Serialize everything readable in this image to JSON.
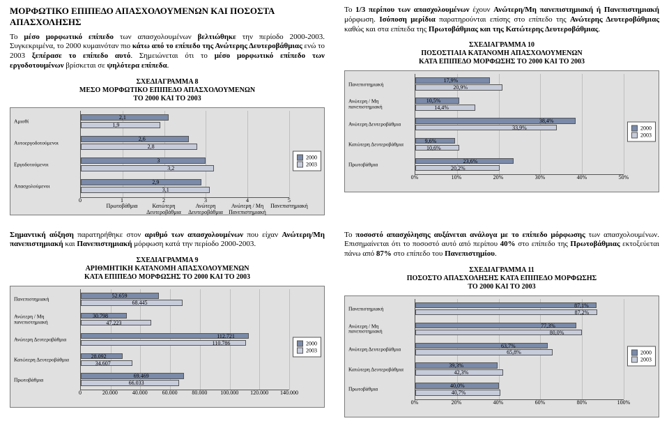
{
  "colors": {
    "series2000": "#7a8aa8",
    "series2003": "#c7ccdb",
    "plot_bg": "#e0e0e0",
    "grid": "#bfbfbf",
    "border": "#7a7a7a",
    "text": "#000000"
  },
  "legend": {
    "y2000": "2000",
    "y2003": "2003"
  },
  "left": {
    "heading": "ΜΟΡΦΩΤΙΚΟ ΕΠΙΠΕΔΟ ΑΠΑΣΧΟΛΟΥΜΕΝΩΝ ΚΑΙ ΠΟΣΟΣΤΑ ΑΠΑΣΧΟΛΗΣΗΣ",
    "p1": "Το μέσο μορφωτικό επίπεδο των απασχολουμένων βελτιώθηκε την περίοδο 2000-2003. Συγκεκριμένα, το 2000 κυμαινόταν πιο κάτω από το επίπεδο της Ανώτερης Δευτεροβάθμιας ενώ το 2003 ξεπέρασε το επίπεδο αυτό. Σημειώνεται ότι το μέσο μορφωτικό επίπεδο των εργοδοτουμένων βρίσκεται σε ψηλότερα επίπεδα.",
    "p2": "Σημαντική αύξηση παρατηρήθηκε στον αριθμό των απασχολουμένων που είχαν Ανώτερη/Μη πανεπιστημιακή και Πανεπιστημιακή μόρφωση κατά την περίοδο 2000-2003."
  },
  "right": {
    "p1": "Το 1/3 περίπου των απασχολουμένων έχουν Ανώτερη/Μη πανεπιστημιακή ή Πανεπιστημιακή μόρφωση. Ισόποση μερίδια παρατηρούνται επίσης στο επίπεδο της Ανώτερης Δευτεροβάθμιας καθώς και στα επίπεδα της Πρωτοβάθμιας και της Κατώτερης Δευτεροβάθμιας.",
    "p2": "Το ποσοστό απασχόλησης αυξάνεται ανάλογα με το επίπεδο μόρφωσης των απασχολουμένων. Επισημαίνεται ότι το ποσοστό αυτό από περίπου 40% στο επίπεδο της Πρωτοβάθμιας εκτοξεύεται πάνω από 87% στο επίπεδο του Πανεπιστημίου."
  },
  "chart8": {
    "title1": "ΣΧΕΔΙΑΓΡΑΜΜΑ 8",
    "title2": "ΜΕΣΟ ΜΟΡΦΩΤΙΚΟ ΕΠΙΠΕΔΟ ΑΠΑΣΧΟΛΟΥΜΕΝΩΝ",
    "title3": "ΤΟ 2000 ΚΑΙ ΤΟ 2003",
    "xmax": 5,
    "xticks": [
      {
        "pos": 0,
        "label": "0"
      },
      {
        "pos": 1,
        "label": "1\nΠρωτοβάθμια"
      },
      {
        "pos": 2,
        "label": "2\nΚατώτερη\nΔευτεροβάθμια"
      },
      {
        "pos": 3,
        "label": "3\nΑνώτερη\nΔευτεροβάθμια"
      },
      {
        "pos": 4,
        "label": "4\nΑνώτερη / Μη\nΠανεπιστημιακή"
      },
      {
        "pos": 5,
        "label": "5\nΠανεπιστημιακή"
      }
    ],
    "rows": [
      {
        "cat": "Αμισθί",
        "v2000": 2.1,
        "v2003": 1.9
      },
      {
        "cat": "Αυτοεργοδοτούμενοι",
        "v2000": 2.6,
        "v2003": 2.8
      },
      {
        "cat": "Εργοδοτούμενοι",
        "v2000": 3.0,
        "v2003": 3.2
      },
      {
        "cat": "Απασχολούμενοι",
        "v2000": 2.9,
        "v2003": 3.1
      }
    ]
  },
  "chart9": {
    "title1": "ΣΧΕΔΙΑΓΡΑΜΜΑ 9",
    "title2": "ΑΡΙΘΜΗΤΙΚΗ ΚΑΤΑΝΟΜΗ ΑΠΑΣΧΟΛΟΥΜΕΝΩΝ",
    "title3": "ΚΑΤΑ ΕΠΙΠΕΔΟ ΜΟΡΦΩΣΗΣ ΤΟ 2000 ΚΑΙ ΤΟ 2003",
    "xmax": 140000,
    "xticks": [
      {
        "pos": 0,
        "label": "0"
      },
      {
        "pos": 20000,
        "label": "20.000"
      },
      {
        "pos": 40000,
        "label": "40.000"
      },
      {
        "pos": 60000,
        "label": "60.000"
      },
      {
        "pos": 80000,
        "label": "80.000"
      },
      {
        "pos": 100000,
        "label": "100.000"
      },
      {
        "pos": 120000,
        "label": "120.000"
      },
      {
        "pos": 140000,
        "label": "140.000"
      }
    ],
    "rows": [
      {
        "cat": "Πανεπιστημιακή",
        "v2000": 52659,
        "v2003": 68445,
        "l2000": "52.659",
        "l2003": "68.445"
      },
      {
        "cat": "Ανώτερη / Μη πανεπιστημιακή",
        "v2000": 30798,
        "v2003": 47223,
        "l2000": "30.798",
        "l2003": "47.223"
      },
      {
        "cat": "Ανώτερη Δευτεροβάθμια",
        "v2000": 112721,
        "v2003": 110786,
        "l2000": "112.721",
        "l2003": "110.786"
      },
      {
        "cat": "Κατώτερη Δευτεροβάθμια",
        "v2000": 28092,
        "v2003": 34607,
        "l2000": "28.092",
        "l2003": "34.607"
      },
      {
        "cat": "Πρωτοβάθμια",
        "v2000": 69469,
        "v2003": 66033,
        "l2000": "69.469",
        "l2003": "66.033"
      }
    ]
  },
  "chart10": {
    "title1": "ΣΧΕΔΙΑΓΡΑΜΜΑ 10",
    "title2": "ΠΟΣΟΣΤΙΑΙΑ ΚΑΤΑΝΟΜΗ ΑΠΑΣΧΟΛΟΥΜΕΝΩΝ",
    "title3": "ΚΑΤΑ ΕΠΙΠΕΔΟ ΜΟΡΦΩΣΗΣ ΤΟ 2000 ΚΑΙ ΤΟ 2003",
    "xmax": 50,
    "xticks": [
      {
        "pos": 0,
        "label": "0%"
      },
      {
        "pos": 10,
        "label": "10%"
      },
      {
        "pos": 20,
        "label": "20%"
      },
      {
        "pos": 30,
        "label": "30%"
      },
      {
        "pos": 40,
        "label": "40%"
      },
      {
        "pos": 50,
        "label": "50%"
      }
    ],
    "rows": [
      {
        "cat": "Πανεπιστημιακή",
        "v2000": 17.9,
        "v2003": 20.9,
        "l2000": "17,9%",
        "l2003": "20,9%"
      },
      {
        "cat": "Ανώτερη / Μη πανεπιστημιακή",
        "v2000": 10.5,
        "v2003": 14.4,
        "l2000": "10,5%",
        "l2003": "14,4%"
      },
      {
        "cat": "Ανώτερη Δευτεροβάθμια",
        "v2000": 38.4,
        "v2003": 33.9,
        "l2000": "38,4%",
        "l2003": "33,9%"
      },
      {
        "cat": "Κατώτερη Δευτεροβάθμια",
        "v2000": 9.6,
        "v2003": 10.6,
        "l2000": "9,6%",
        "l2003": "10,6%"
      },
      {
        "cat": "Πρωτοβάθμια",
        "v2000": 23.6,
        "v2003": 20.2,
        "l2000": "23,6%",
        "l2003": "20,2%"
      }
    ]
  },
  "chart11": {
    "title1": "ΣΧΕΔΙΑΓΡΑΜΜΑ 11",
    "title2": "ΠΟΣΟΣΤΟ ΑΠΑΣΧΟΛΗΣΗΣ ΚΑΤΑ ΕΠΙΠΕΔΟ ΜΟΡΦΩΣΗΣ",
    "title3": "ΤΟ 2000 ΚΑΙ ΤΟ 2003",
    "xmax": 100,
    "xticks": [
      {
        "pos": 0,
        "label": "0%"
      },
      {
        "pos": 20,
        "label": "20%"
      },
      {
        "pos": 40,
        "label": "40%"
      },
      {
        "pos": 60,
        "label": "60%"
      },
      {
        "pos": 80,
        "label": "80%"
      },
      {
        "pos": 100,
        "label": "100%"
      }
    ],
    "rows": [
      {
        "cat": "Πανεπιστημιακή",
        "v2000": 87.1,
        "v2003": 87.2,
        "l2000": "87,1%",
        "l2003": "87,2%"
      },
      {
        "cat": "Ανώτερη / Μη πανεπιστημιακή",
        "v2000": 77.3,
        "v2003": 80.0,
        "l2000": "77,3%",
        "l2003": "80,0%"
      },
      {
        "cat": "Ανώτερη Δευτεροβάθμια",
        "v2000": 63.7,
        "v2003": 65.8,
        "l2000": "63,7%",
        "l2003": "65,8%"
      },
      {
        "cat": "Κατώτερη Δευτεροβάθμια",
        "v2000": 39.3,
        "v2003": 42.3,
        "l2000": "39,3%",
        "l2003": "42,3%"
      },
      {
        "cat": "Πρωτοβάθμια",
        "v2000": 40.0,
        "v2003": 40.7,
        "l2000": "40,0%",
        "l2003": "40,7%"
      }
    ]
  }
}
